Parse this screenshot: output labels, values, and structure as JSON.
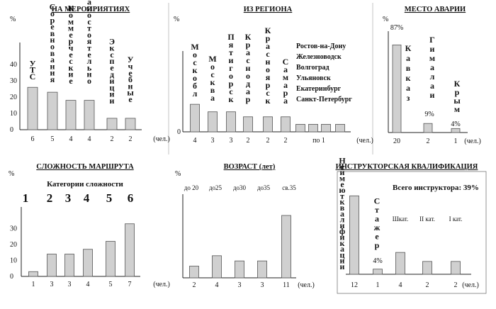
{
  "chart_data": [
    {
      "type": "bar",
      "title": "НА МЕРОПРИЯТИЯХ",
      "ylabel": "%",
      "xunit": "(чел.)",
      "yticks": [
        "0",
        "10",
        "20",
        "30",
        "40"
      ],
      "ylim": [
        0,
        50
      ],
      "categories": [
        "УТС",
        "Соревнования",
        "Коммерческие",
        "Самостоятельно",
        "Экспедиции",
        "Учебные"
      ],
      "counts": [
        "6",
        "5",
        "4",
        "4",
        "2",
        "2"
      ],
      "values": [
        26,
        23,
        18,
        18,
        7,
        7
      ]
    },
    {
      "type": "bar",
      "title": "ИЗ РЕГИОНА",
      "ylabel": "%",
      "xunit": "(чел.)",
      "yticks": [
        "0"
      ],
      "ylim": [
        0,
        30
      ],
      "categories": [
        "Моск обл",
        "Москва",
        "Пятигорск",
        "Краснодар",
        "Красноярск",
        "Самара",
        "",
        "",
        "",
        ""
      ],
      "counts": [
        "4",
        "3",
        "3",
        "2",
        "2",
        "2",
        "по 1",
        "",
        "",
        ""
      ],
      "values": [
        11,
        8,
        8,
        6,
        6,
        6,
        3,
        3,
        3,
        3
      ],
      "other_regions": [
        "Ростов-на-Дону",
        "Железноводск",
        "Волгоград",
        "Ульяновск",
        "Екатеринбург",
        "Санкт-Петербург"
      ]
    },
    {
      "type": "bar",
      "title": "МЕСТО АВАРИИ",
      "ylabel": "%",
      "xunit": "(чел.)",
      "ylim": [
        0,
        95
      ],
      "categories": [
        "Кавказ",
        "Гимала и",
        "Крым"
      ],
      "counts": [
        "20",
        "2",
        "1"
      ],
      "values": [
        87,
        9,
        4
      ],
      "data_labels": [
        "87%",
        "9%",
        "4%"
      ]
    },
    {
      "type": "bar",
      "title": "СЛОЖНОСТЬ МАРШРУТА",
      "subtitle": "Категории сложности",
      "ylabel": "%",
      "xunit": "(чел.)",
      "yticks": [
        "0",
        "10",
        "20",
        "30"
      ],
      "ylim": [
        0,
        40
      ],
      "categories": [
        "1",
        "2",
        "3",
        "4",
        "5",
        "6"
      ],
      "counts": [
        "1",
        "3",
        "3",
        "4",
        "5",
        "7"
      ],
      "values": [
        3,
        14,
        14,
        17,
        22,
        33
      ]
    },
    {
      "type": "bar",
      "title": "ВОЗРАСТ (лет)",
      "ylabel": "%",
      "xunit": "(чел.)",
      "ylim": [
        0,
        60
      ],
      "categories": [
        "до 20",
        "до25",
        "до30",
        "до35",
        "св.35"
      ],
      "counts": [
        "2",
        "4",
        "3",
        "3",
        "11"
      ],
      "values": [
        9,
        17,
        13,
        13,
        48
      ]
    },
    {
      "type": "bar",
      "title": "ИНСТРУКТОРСКАЯ КВАЛИФИКАЦИЯ",
      "note": "Всего инструктора: 39%",
      "xunit": "(чел.)",
      "ylim": [
        0,
        70
      ],
      "categories": [
        "Не имеют квалификации",
        "Стажер",
        "Шкат.",
        "II кат.",
        "I кат."
      ],
      "counts": [
        "12",
        "1",
        "4",
        "2",
        "2"
      ],
      "values": [
        61,
        4,
        17,
        10,
        10
      ],
      "data_labels": [
        "",
        "4%",
        "",
        "",
        ""
      ]
    }
  ]
}
